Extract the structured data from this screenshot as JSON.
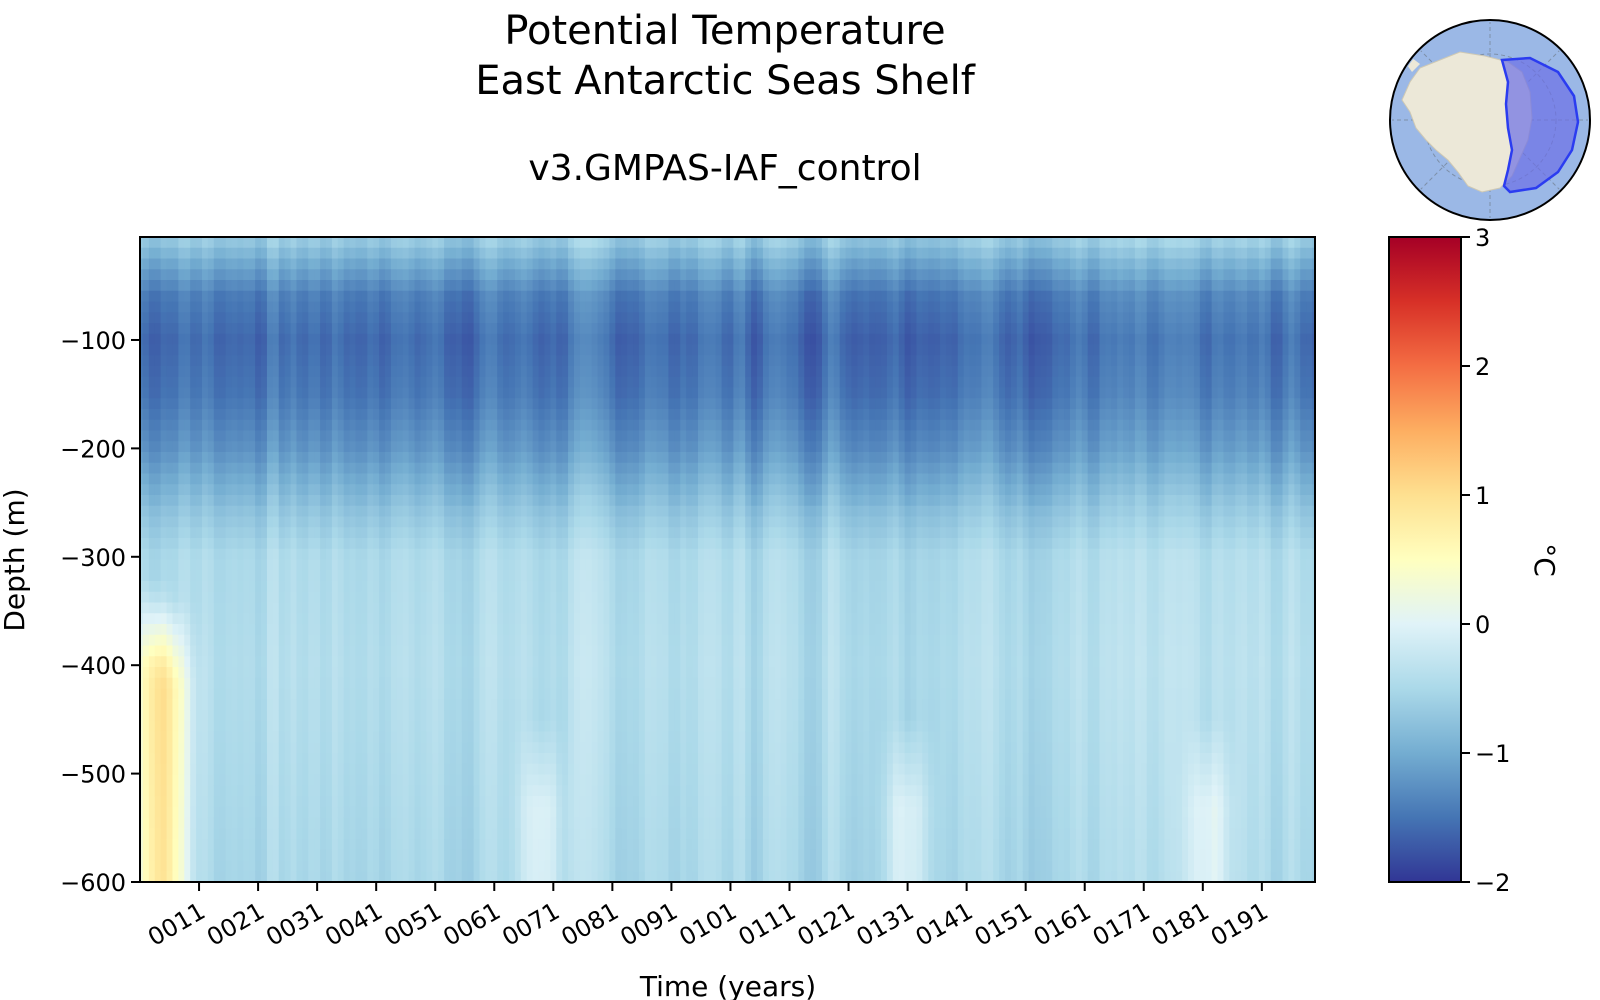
{
  "chart_data": {
    "type": "heatmap",
    "title": [
      "Potential Temperature",
      "East Antarctic Seas Shelf"
    ],
    "subtitle": "v3.GMPAS-IAF_control",
    "xlabel": "Time (years)",
    "ylabel": "Depth (m)",
    "x_ticks": [
      "0011",
      "0021",
      "0031",
      "0041",
      "0051",
      "0061",
      "0071",
      "0081",
      "0091",
      "0101",
      "0111",
      "0121",
      "0131",
      "0141",
      "0151",
      "0161",
      "0171",
      "0181",
      "0191"
    ],
    "xlim": [
      1,
      200
    ],
    "y_ticks": [
      -100,
      -200,
      -300,
      -400,
      -500,
      -600
    ],
    "y_tick_labels": [
      "−100",
      "−200",
      "−300",
      "−400",
      "−500",
      "−600"
    ],
    "ylim": [
      -600,
      -5
    ],
    "colorbar": {
      "label": "°C",
      "range": [
        -2,
        3
      ],
      "ticks": [
        3,
        2,
        1,
        0,
        -1,
        -2
      ],
      "tick_labels": [
        "3",
        "2",
        "1",
        "0",
        "−1",
        "−2"
      ],
      "colormap": "RdYlBu_r"
    },
    "depth_profile": [
      {
        "depth": -5,
        "temp": -0.6
      },
      {
        "depth": -30,
        "temp": -1.0
      },
      {
        "depth": -60,
        "temp": -1.4
      },
      {
        "depth": -100,
        "temp": -1.55
      },
      {
        "depth": -150,
        "temp": -1.45
      },
      {
        "depth": -200,
        "temp": -1.2
      },
      {
        "depth": -260,
        "temp": -0.7
      },
      {
        "depth": -300,
        "temp": -0.45
      },
      {
        "depth": -400,
        "temp": -0.4
      },
      {
        "depth": -500,
        "temp": -0.45
      },
      {
        "depth": -600,
        "temp": -0.5
      }
    ],
    "warm_anomalies": [
      {
        "year": 3,
        "depth_top": -320,
        "amplitude": 0.9
      },
      {
        "year": 6,
        "depth_top": -340,
        "amplitude": 0.9
      },
      {
        "year": 69,
        "depth_top": -450,
        "amplitude": 0.5
      },
      {
        "year": 131,
        "depth_top": -450,
        "amplitude": 0.55
      },
      {
        "year": 182,
        "depth_top": -450,
        "amplitude": 0.5
      }
    ],
    "inset_map": {
      "region": "East Antarctic Seas Shelf",
      "projection": "south-polar-stereographic"
    }
  }
}
